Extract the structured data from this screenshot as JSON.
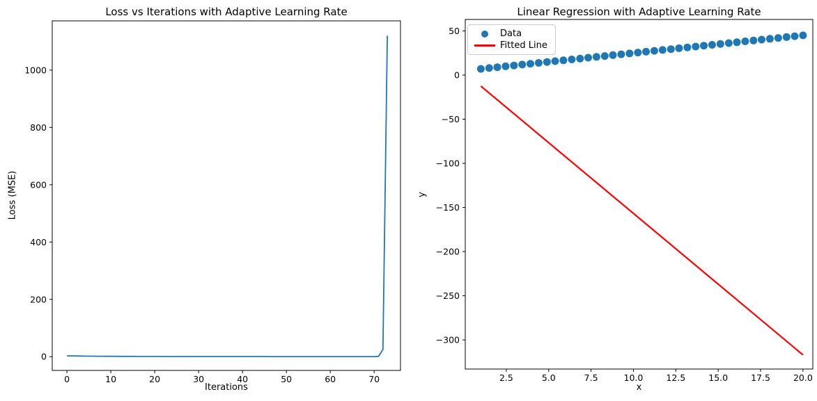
{
  "figure": {
    "background": "#ffffff",
    "text_color": "#000000",
    "spine_color": "#000000"
  },
  "chart_data": [
    {
      "type": "line",
      "name": "loss-vs-iterations-chart",
      "title": "Loss vs Iterations with Adaptive Learning Rate",
      "xlabel": "Iterations",
      "ylabel": "Loss (MSE)",
      "xlim": [
        -3.35,
        76.0
      ],
      "ylim": [
        -48,
        1172
      ],
      "xticks": [
        0,
        10,
        20,
        30,
        40,
        50,
        60,
        70
      ],
      "xtick_labels": [
        "0",
        "10",
        "20",
        "30",
        "40",
        "50",
        "60",
        "70"
      ],
      "yticks": [
        0,
        200,
        400,
        600,
        800,
        1000
      ],
      "ytick_labels": [
        "0",
        "200",
        "400",
        "600",
        "800",
        "1000"
      ],
      "grid": false,
      "legend": null,
      "series": [
        {
          "name": "loss",
          "color": "#1f77b4",
          "x": [
            0,
            1,
            2,
            3,
            4,
            5,
            6,
            7,
            8,
            9,
            10,
            11,
            12,
            13,
            14,
            15,
            16,
            17,
            18,
            19,
            20,
            21,
            22,
            23,
            24,
            25,
            26,
            27,
            28,
            29,
            30,
            31,
            32,
            33,
            34,
            35,
            36,
            37,
            38,
            39,
            40,
            41,
            42,
            43,
            44,
            45,
            46,
            47,
            48,
            49,
            50,
            51,
            52,
            53,
            54,
            55,
            56,
            57,
            58,
            59,
            60,
            61,
            62,
            63,
            64,
            65,
            66,
            67,
            68,
            69,
            70,
            71,
            72,
            73
          ],
          "y": [
            2.9,
            2.62,
            2.38,
            2.16,
            1.97,
            1.8,
            1.65,
            1.52,
            1.4,
            1.3,
            1.21,
            1.13,
            1.06,
            1.0,
            0.94,
            0.89,
            0.85,
            0.81,
            0.77,
            0.74,
            0.71,
            0.68,
            0.65,
            0.63,
            0.61,
            0.59,
            0.57,
            0.55,
            0.54,
            0.52,
            0.51,
            0.5,
            0.49,
            0.48,
            0.47,
            0.46,
            0.45,
            0.44,
            0.43,
            0.42,
            0.42,
            0.41,
            0.4,
            0.4,
            0.39,
            0.39,
            0.38,
            0.38,
            0.37,
            0.37,
            0.36,
            0.36,
            0.35,
            0.35,
            0.34,
            0.34,
            0.34,
            0.33,
            0.33,
            0.33,
            0.32,
            0.32,
            0.32,
            0.31,
            0.31,
            0.31,
            0.31,
            0.3,
            0.3,
            0.3,
            0.35,
            1.0,
            25.0,
            1120.0
          ]
        }
      ]
    },
    {
      "type": "scatter",
      "name": "linear-regression-chart",
      "title": "Linear Regression with Adaptive Learning Rate",
      "xlabel": "x",
      "ylabel": "y",
      "xlim": [
        0.08,
        20.58
      ],
      "ylim": [
        -333,
        63
      ],
      "xticks": [
        2.5,
        5.0,
        7.5,
        10.0,
        12.5,
        15.0,
        17.5,
        20.0
      ],
      "xtick_labels": [
        "2.5",
        "5.0",
        "7.5",
        "10.0",
        "12.5",
        "15.0",
        "17.5",
        "20.0"
      ],
      "yticks": [
        50,
        0,
        -50,
        -100,
        -150,
        -200,
        -250,
        -300
      ],
      "ytick_labels": [
        "50",
        "0",
        "−50",
        "−100",
        "−150",
        "−200",
        "−250",
        "−300"
      ],
      "grid": false,
      "legend": {
        "position": "upper left",
        "entries": [
          {
            "label": "Data",
            "type": "marker",
            "color": "#1f77b4"
          },
          {
            "label": "Fitted Line",
            "type": "line",
            "color": "#ff0000"
          }
        ]
      },
      "scatter": {
        "name": "Data",
        "color": "#1f77b4",
        "marker_radius": 5.5,
        "x": [
          1.0,
          1.49,
          1.97,
          2.46,
          2.95,
          3.44,
          3.92,
          4.41,
          4.9,
          5.38,
          5.87,
          6.36,
          6.85,
          7.33,
          7.82,
          8.31,
          8.79,
          9.28,
          9.77,
          10.26,
          10.74,
          11.23,
          11.72,
          12.21,
          12.69,
          13.18,
          13.67,
          14.15,
          14.64,
          15.13,
          15.62,
          16.1,
          16.59,
          17.08,
          17.56,
          18.05,
          18.54,
          19.03,
          19.51,
          20.0
        ],
        "y": [
          7.0,
          7.97,
          8.95,
          9.92,
          10.9,
          11.87,
          12.85,
          13.82,
          14.79,
          15.77,
          16.74,
          17.72,
          18.69,
          19.67,
          20.64,
          21.62,
          22.59,
          23.56,
          24.54,
          25.51,
          26.49,
          27.46,
          28.44,
          29.41,
          30.38,
          31.36,
          32.33,
          33.31,
          34.28,
          35.26,
          36.23,
          37.21,
          38.18,
          39.15,
          40.13,
          41.1,
          42.08,
          43.05,
          44.03,
          45.0
        ]
      },
      "fitted_line": {
        "name": "Fitted Line",
        "color": "#ff0000",
        "x": [
          1.0,
          20.0
        ],
        "y": [
          -12.5,
          -317.0
        ]
      }
    }
  ]
}
